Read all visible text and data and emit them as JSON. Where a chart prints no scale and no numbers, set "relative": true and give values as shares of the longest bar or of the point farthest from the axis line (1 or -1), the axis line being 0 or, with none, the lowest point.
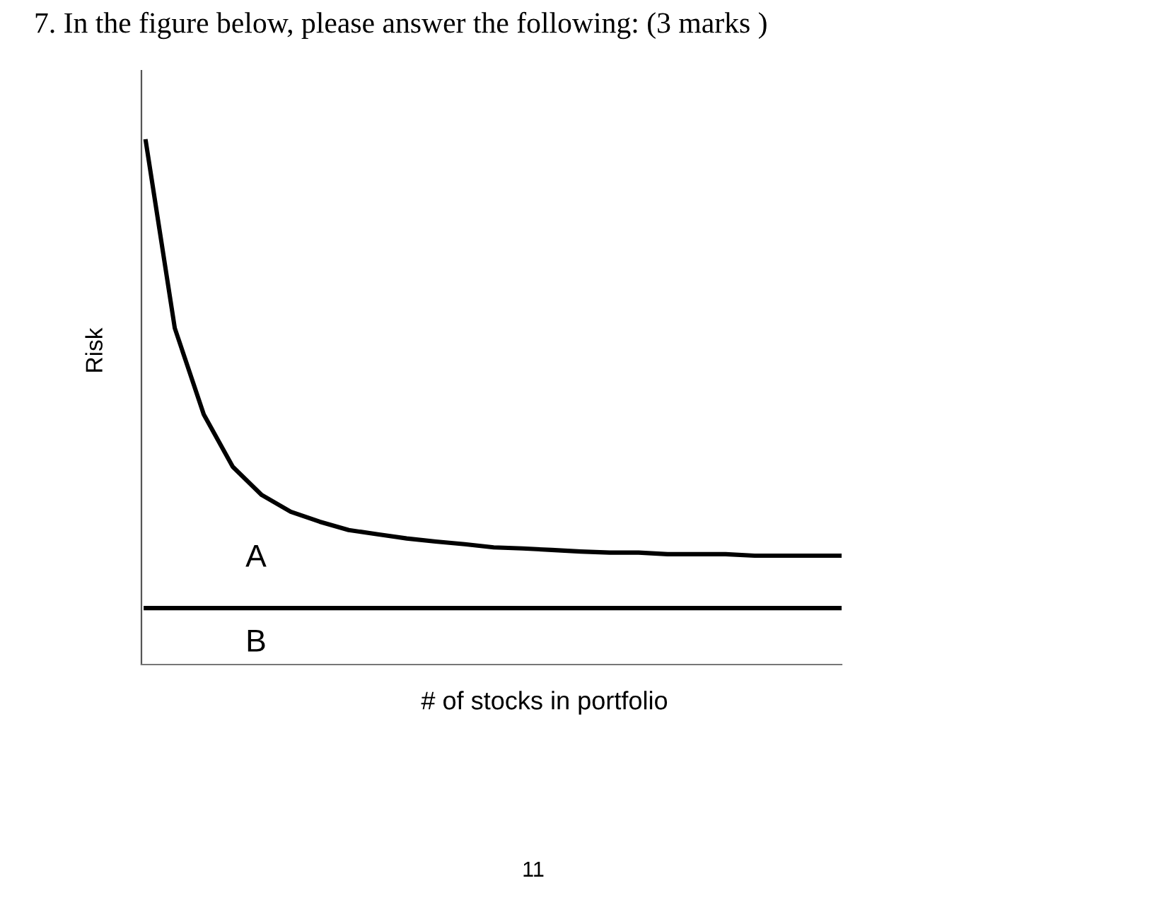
{
  "chart_data": {
    "type": "line",
    "relative": true,
    "title": "7. In the figure below, please answer the following: (3 marks )",
    "xlabel": "# of stocks in portfolio",
    "ylabel": "Risk",
    "categories": [
      null,
      null,
      null,
      null,
      null,
      null,
      null,
      null,
      null,
      null,
      null,
      null,
      null,
      null,
      null,
      null,
      null,
      null,
      null,
      null,
      null,
      null,
      null,
      null,
      null
    ],
    "series": [
      {
        "color": "#000000",
        "values": [
          1.0,
          0.643,
          0.478,
          0.378,
          0.324,
          0.292,
          0.273,
          0.257,
          0.249,
          0.241,
          0.235,
          0.23,
          0.224,
          0.222,
          0.219,
          0.216,
          0.214,
          0.214,
          0.211,
          0.211,
          0.211,
          0.208,
          0.208,
          0.208,
          0.208
        ]
      },
      {
        "color": "#000000",
        "values": [
          0.108,
          0.108,
          0.108,
          0.108,
          0.108,
          0.108,
          0.108,
          0.108,
          0.108,
          0.108,
          0.108,
          0.108,
          0.108,
          0.108,
          0.108,
          0.108,
          0.108,
          0.108,
          0.108,
          0.108,
          0.108,
          0.108,
          0.108,
          0.108,
          0.108
        ]
      }
    ],
    "annotations": [
      "A",
      "B",
      "11"
    ],
    "grid": false,
    "marker": "none",
    "line_style": "solid"
  }
}
